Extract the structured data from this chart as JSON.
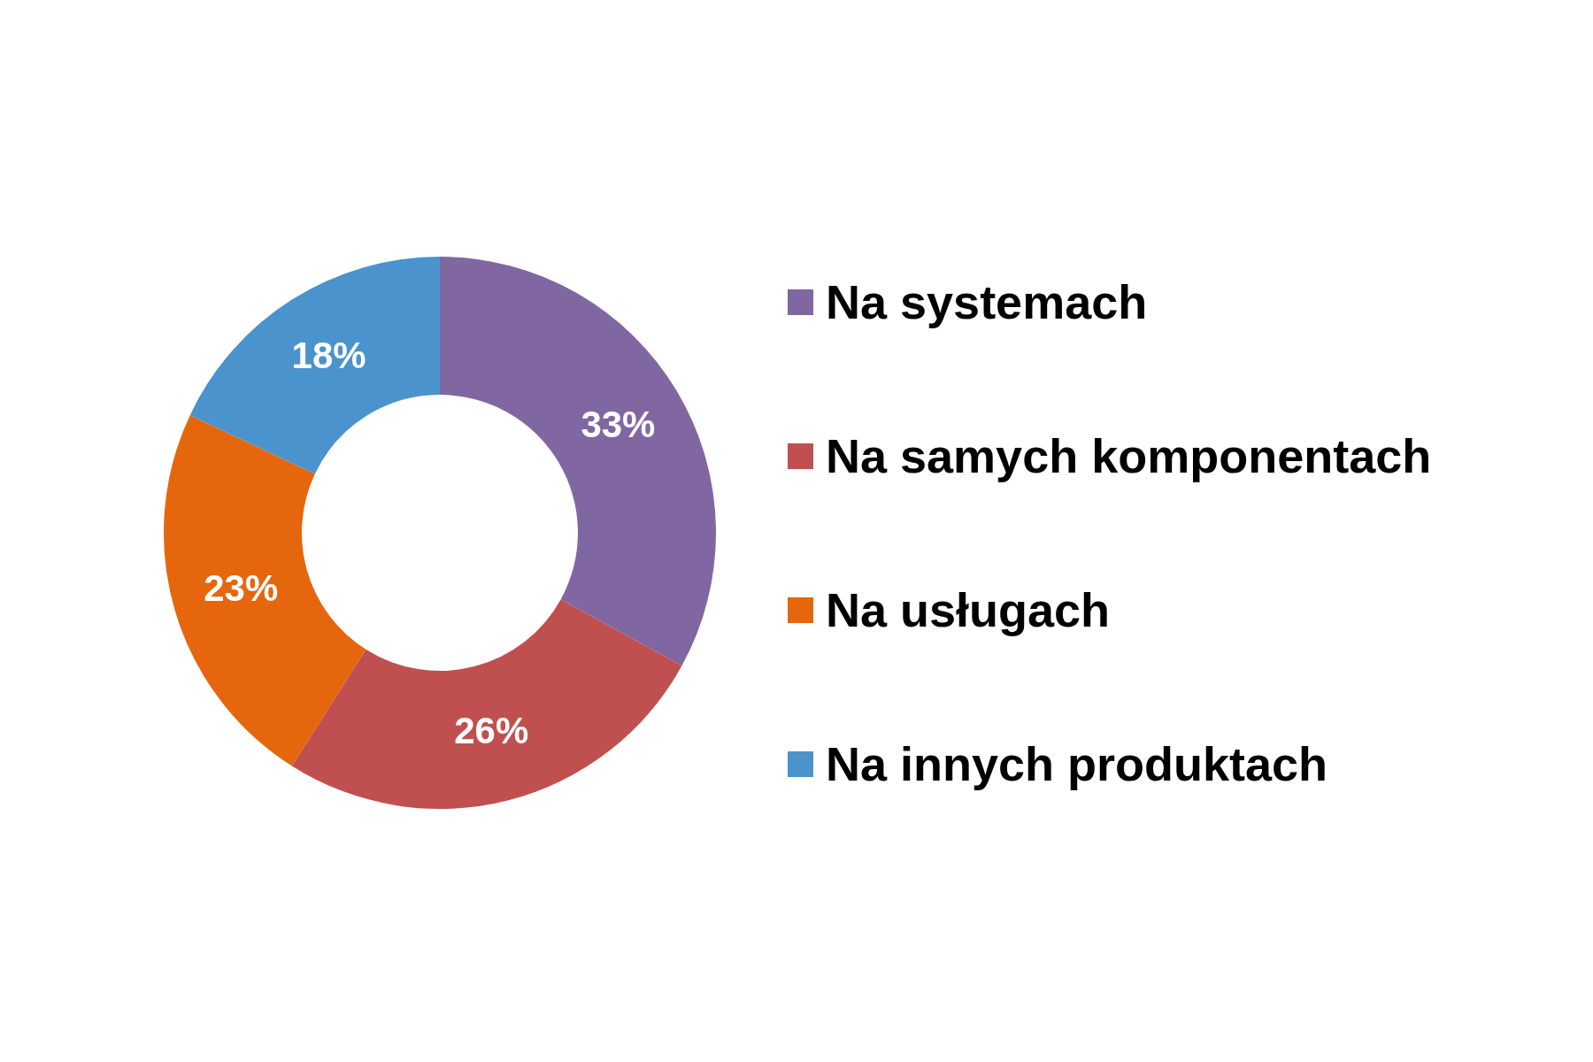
{
  "chart_data": {
    "type": "donut",
    "categories": [
      "Na systemach",
      "Na samych komponentach",
      "Na usługach",
      "Na innych produktach"
    ],
    "values": [
      33,
      26,
      23,
      18
    ],
    "colors": [
      "#8067a2",
      "#c0504f",
      "#e5660c",
      "#4a93cd"
    ],
    "value_labels": [
      "33%",
      "26%",
      "23%",
      "18%"
    ],
    "legend": "right"
  }
}
